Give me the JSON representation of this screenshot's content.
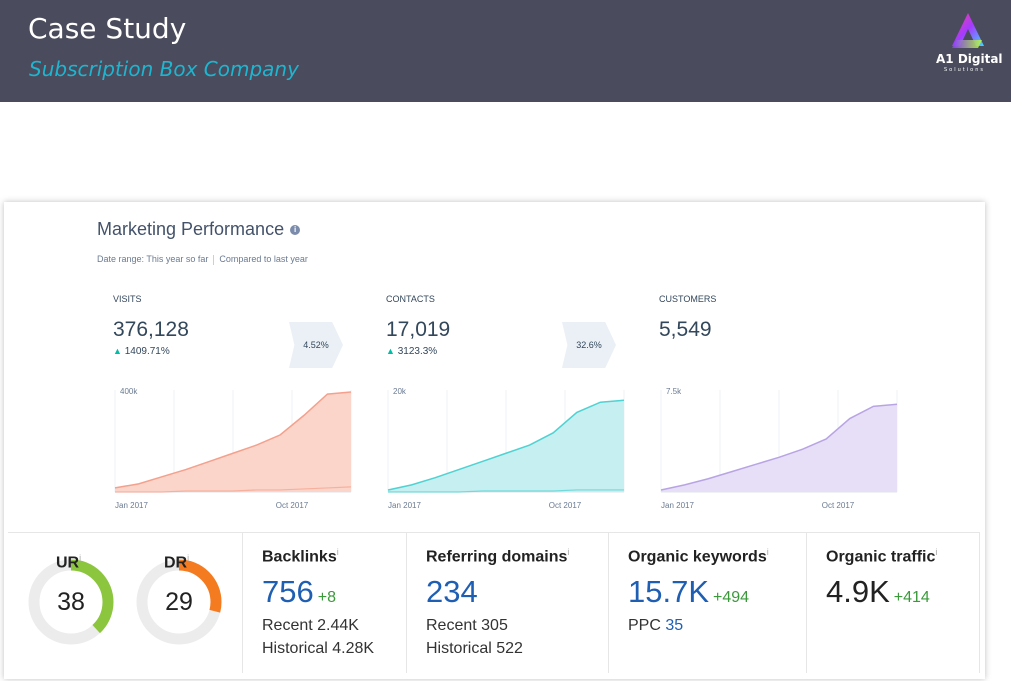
{
  "header": {
    "title": "Case Study",
    "subtitle": "Subscription Box Company",
    "logo_text": "A1 Digital",
    "logo_tagline": "Solutions"
  },
  "marketing": {
    "title": "Marketing Performance",
    "info": "i",
    "date_range": "Date range: This year so far",
    "compared": "Compared to last year",
    "kpis": [
      {
        "label": "VISITS",
        "value": "376,128",
        "growth": "1409.71%"
      },
      {
        "label": "CONTACTS",
        "value": "17,019",
        "growth": "3123.3%"
      },
      {
        "label": "CUSTOMERS",
        "value": "5,549",
        "growth": ""
      }
    ],
    "conversions": [
      "4.52%",
      "32.6%"
    ],
    "charts": [
      {
        "ymax_label": "400k",
        "x_start": "Jan 2017",
        "x_end": "Oct 2017",
        "color": "#f5a08c",
        "fill": "#fbd5ca",
        "values": [
          0.04,
          0.08,
          0.15,
          0.22,
          0.3,
          0.38,
          0.46,
          0.56,
          0.75,
          0.96,
          0.98
        ],
        "baseline": [
          0.0,
          0.0,
          0.0,
          0.01,
          0.01,
          0.01,
          0.02,
          0.02,
          0.03,
          0.04,
          0.05
        ]
      },
      {
        "ymax_label": "20k",
        "x_start": "Jan 2017",
        "x_end": "Oct 2017",
        "color": "#4fd2d2",
        "fill": "#c5eff0",
        "values": [
          0.02,
          0.07,
          0.14,
          0.22,
          0.3,
          0.38,
          0.46,
          0.58,
          0.78,
          0.88,
          0.9
        ],
        "baseline": [
          0.0,
          0.0,
          0.0,
          0.0,
          0.01,
          0.01,
          0.01,
          0.01,
          0.02,
          0.02,
          0.02
        ]
      },
      {
        "ymax_label": "7.5k",
        "x_start": "Jan 2017",
        "x_end": "Oct 2017",
        "color": "#b8a4e4",
        "fill": "#e7dff7",
        "values": [
          0.02,
          0.07,
          0.13,
          0.2,
          0.27,
          0.34,
          0.42,
          0.52,
          0.72,
          0.84,
          0.86
        ],
        "baseline": []
      }
    ]
  },
  "ahrefs": {
    "ur": {
      "label": "UR",
      "value": "38",
      "fraction": 0.38,
      "color": "#8cc63f"
    },
    "dr": {
      "label": "DR",
      "value": "29",
      "fraction": 0.29,
      "color": "#f47b20"
    },
    "info": "i",
    "backlinks": {
      "title": "Backlinks",
      "value": "756",
      "delta": "+8",
      "recent": "Recent 2.44K",
      "historical": "Historical 4.28K"
    },
    "referring": {
      "title": "Referring domains",
      "value": "234",
      "recent": "Recent 305",
      "historical": "Historical 522"
    },
    "keywords": {
      "title": "Organic keywords",
      "value": "15.7K",
      "delta": "+494",
      "ppc_label": "PPC",
      "ppc_value": "35"
    },
    "traffic": {
      "title": "Organic traffic",
      "value": "4.9K",
      "delta": "+414"
    }
  }
}
